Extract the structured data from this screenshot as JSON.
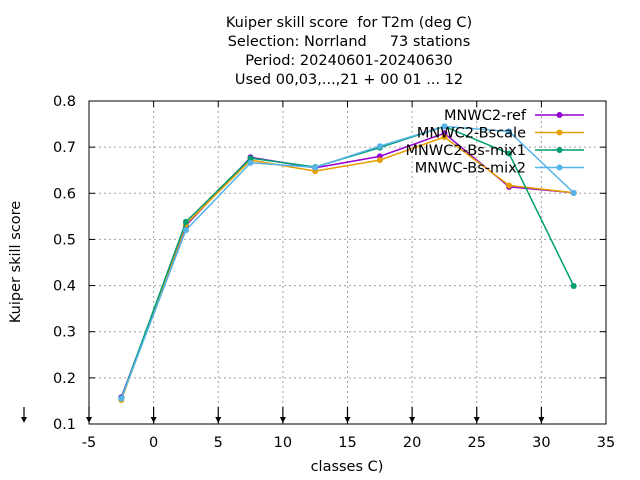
{
  "chart_data": {
    "type": "line",
    "title_lines": [
      "Kuiper skill score  for T2m (deg C)",
      "Selection: Norrland     73 stations",
      "Period: 20240601-20240630",
      "Used 00,03,...,21 + 00 01 ... 12"
    ],
    "xlabel": "classes C)",
    "ylabel": "Kuiper skill score",
    "xlim": [
      -5,
      35
    ],
    "ylim": [
      0.1,
      0.8
    ],
    "xticks": [
      -5,
      0,
      5,
      10,
      15,
      20,
      25,
      30,
      35
    ],
    "yticks": [
      0.1,
      0.2,
      0.3,
      0.4,
      0.5,
      0.6,
      0.7,
      0.8
    ],
    "xtick_labels": [
      "-5",
      "0",
      "5",
      "10",
      "15",
      "20",
      "25",
      "30",
      "35"
    ],
    "ytick_labels": [
      "0.1",
      "0.2",
      "0.3",
      "0.4",
      "0.5",
      "0.6",
      "0.7",
      "0.8"
    ],
    "grid": true,
    "legend_position": "top-right",
    "x": [
      -2.5,
      2.5,
      7.5,
      12.5,
      17.5,
      22.5,
      27.5,
      32.5
    ],
    "series": [
      {
        "name": "MNWC2-ref",
        "color": "#9400d3",
        "marker": "circle",
        "values": [
          0.158,
          0.53,
          0.678,
          0.655,
          0.68,
          0.73,
          0.614,
          0.601
        ]
      },
      {
        "name": "MNWC2-Bscale",
        "color": "#e69f00",
        "marker": "circle",
        "values": [
          0.152,
          0.533,
          0.672,
          0.648,
          0.672,
          0.722,
          0.617,
          0.601
        ]
      },
      {
        "name": "MNWC2-Bs-mix1",
        "color": "#009e73",
        "marker": "circle",
        "values": [
          0.156,
          0.538,
          0.676,
          0.657,
          0.699,
          0.745,
          0.686,
          0.399
        ]
      },
      {
        "name": "MNWC-Bs-mix2",
        "color": "#56b4e9",
        "marker": "circle",
        "values": [
          0.155,
          0.52,
          0.666,
          0.656,
          0.702,
          0.745,
          0.734,
          0.601
        ]
      }
    ],
    "bottom_arrow_x": [
      -5,
      0,
      5,
      10,
      15,
      20,
      25,
      30
    ]
  }
}
